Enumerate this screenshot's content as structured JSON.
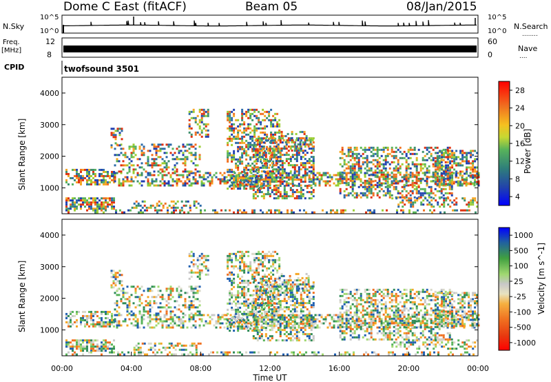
{
  "header": {
    "station": "Dome C East (fitACF)",
    "beam": "Beam 05",
    "date": "08/Jan/2015"
  },
  "panels": {
    "nsky": {
      "left_label": "N.Sky",
      "left_ticks": [
        "10^5",
        "10^0"
      ],
      "right_ticks": [
        "10^5",
        "10^0"
      ],
      "right_label": "N.Search"
    },
    "freq": {
      "left_label_top": "Freq.",
      "left_label_bottom": "[MHz]",
      "left_ticks": [
        "12",
        "8"
      ],
      "right_ticks": [
        "60",
        "0"
      ],
      "right_label": "Nave"
    },
    "cpid": {
      "label": "CPID",
      "value": "twofsound 3501"
    }
  },
  "colors": {
    "power_scale": [
      "#0000ff",
      "#1f3fb0",
      "#2b6aa8",
      "#3d8f6c",
      "#58b35a",
      "#9acd32",
      "#f0e020",
      "#f5a623",
      "#f07020",
      "#e03010",
      "#ff0000"
    ],
    "velocity_scale": [
      "#ff0000",
      "#e83010",
      "#f07020",
      "#f5a623",
      "#e8e8c0",
      "#c8c8c8",
      "#a0d870",
      "#58b35a",
      "#2e8b57",
      "#1f5fb0",
      "#0000ff"
    ]
  },
  "chart_data": [
    {
      "type": "heatmap",
      "name": "power",
      "title": "",
      "ylabel": "Slant Range [km]",
      "xlabel": "",
      "ylim": [
        180,
        4500
      ],
      "yticks": [
        "1000",
        "2000",
        "3000",
        "4000"
      ],
      "colorbar_label": "Power [dB]",
      "colorbar_ticks": [
        "4",
        "8",
        "12",
        "16",
        "20",
        "24",
        "28"
      ]
    },
    {
      "type": "heatmap",
      "name": "velocity",
      "title": "",
      "ylabel": "Slant Range [km]",
      "xlabel": "Time UT",
      "ylim": [
        180,
        4500
      ],
      "yticks": [
        "1000",
        "2000",
        "3000",
        "4000"
      ],
      "xticks": [
        "00:00",
        "04:00",
        "08:00",
        "12:00",
        "16:00",
        "20:00",
        "00:00"
      ],
      "colorbar_label": "Velocity [m s^-1]",
      "colorbar_ticks": [
        "1000",
        "500",
        "100",
        "25",
        "-25",
        "-100",
        "-500",
        "-1000"
      ]
    }
  ]
}
